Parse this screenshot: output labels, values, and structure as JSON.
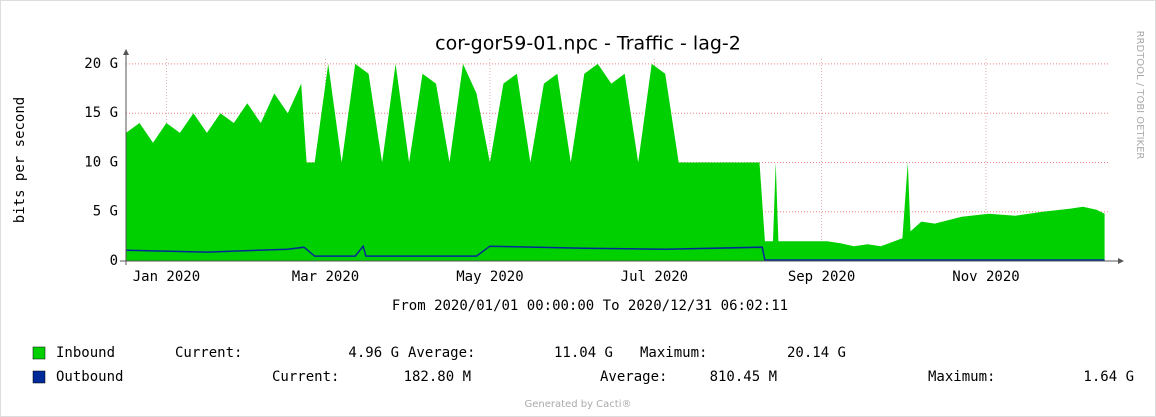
{
  "chart_data": {
    "type": "area",
    "title": "cor-gor59-01.npc - Traffic - lag-2",
    "subtitle": "From 2020/01/01 00:00:00 To 2020/12/31 06:02:11",
    "y_label": "bits per second",
    "side_note": "RRDTOOL / TOBI OETIKER",
    "footer": "Generated by Cacti®",
    "xlim": [
      0,
      365
    ],
    "xticks": [
      {
        "value": 15,
        "label": "Jan 2020"
      },
      {
        "value": 74,
        "label": "Mar 2020"
      },
      {
        "value": 135,
        "label": "May 2020"
      },
      {
        "value": 196,
        "label": "Jul 2020"
      },
      {
        "value": 258,
        "label": "Sep 2020"
      },
      {
        "value": 319,
        "label": "Nov 2020"
      }
    ],
    "ylim": [
      0,
      20.5
    ],
    "yticks": [
      0,
      {
        "value": 5,
        "label": "5 G"
      },
      {
        "value": 10,
        "label": "10 G"
      },
      {
        "value": 15,
        "label": "15 G"
      },
      {
        "value": 20,
        "label": "20 G"
      }
    ],
    "grid": true,
    "series": [
      {
        "name": "Inbound",
        "color": "#00cf00",
        "fill": true,
        "current_label": "Current:",
        "current": "4.96 G",
        "average_label": "Average:",
        "average": "11.04 G",
        "maximum_label": "Maximum:",
        "maximum": "20.14 G",
        "x": [
          0,
          5,
          10,
          15,
          20,
          25,
          30,
          35,
          40,
          45,
          50,
          55,
          60,
          65,
          67,
          70,
          75,
          80,
          85,
          90,
          95,
          100,
          105,
          110,
          115,
          120,
          125,
          130,
          135,
          140,
          145,
          150,
          155,
          160,
          165,
          170,
          175,
          180,
          185,
          190,
          195,
          200,
          205,
          210,
          215,
          220,
          225,
          230,
          235,
          237,
          240,
          241,
          242,
          250,
          260,
          265,
          270,
          275,
          280,
          285,
          288,
          290,
          291,
          295,
          300,
          310,
          320,
          330,
          340,
          350,
          355,
          360,
          363
        ],
        "values": [
          13,
          14,
          12,
          14,
          13,
          15,
          13,
          15,
          14,
          16,
          14,
          17,
          15,
          18,
          10,
          10,
          20,
          10,
          20,
          19,
          10,
          20,
          10,
          19,
          18,
          10,
          20,
          17,
          10,
          18,
          19,
          10,
          18,
          19,
          10,
          19,
          20,
          18,
          19,
          10,
          20,
          19,
          10,
          10,
          10,
          10,
          10,
          10,
          10,
          2,
          2,
          10,
          2,
          2,
          2,
          1.8,
          1.5,
          1.7,
          1.5,
          2,
          2.3,
          10,
          3,
          4,
          3.8,
          4.5,
          4.8,
          4.6,
          5,
          5.3,
          5.5,
          5.2,
          4.8
        ]
      },
      {
        "name": "Outbound",
        "color": "#002a97",
        "fill": false,
        "current_label": "Current:",
        "current": "182.80 M",
        "average_label": "Average:",
        "average": "810.45 M",
        "maximum_label": "Maximum:",
        "maximum": "1.64 G",
        "x": [
          0,
          30,
          60,
          66,
          70,
          85,
          88,
          89,
          130,
          135,
          170,
          200,
          236,
          237,
          363
        ],
        "values": [
          1.1,
          0.9,
          1.2,
          1.4,
          0.5,
          0.5,
          1.5,
          0.5,
          0.5,
          1.5,
          1.3,
          1.2,
          1.4,
          0.1,
          0.1
        ]
      }
    ]
  }
}
